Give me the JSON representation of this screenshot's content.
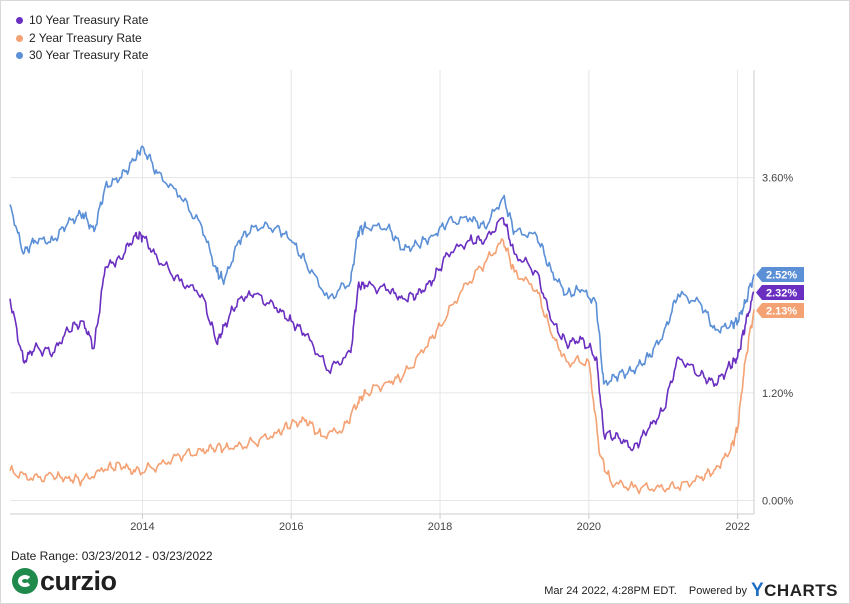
{
  "legend": {
    "items": [
      {
        "label": "10 Year Treasury Rate",
        "color": "#6a2fc0"
      },
      {
        "label": "2 Year Treasury Rate",
        "color": "#f4a173"
      },
      {
        "label": "30 Year Treasury Rate",
        "color": "#5b8fd6"
      }
    ]
  },
  "footer": {
    "date_range": "Date Range: 03/23/2012 - 03/23/2022",
    "logo_text": "curzio",
    "timestamp": "Mar 24 2022, 4:28PM EDT.",
    "powered_by": "Powered by",
    "brand_y": "Y",
    "brand_rest": "CHARTS"
  },
  "chart_data": {
    "type": "line",
    "x_range": [
      2012.22,
      2022.22
    ],
    "y_range": [
      -0.15,
      4.8
    ],
    "x_ticks": [
      {
        "value": 2014,
        "label": "2014"
      },
      {
        "value": 2016,
        "label": "2016"
      },
      {
        "value": 2018,
        "label": "2018"
      },
      {
        "value": 2020,
        "label": "2020"
      },
      {
        "value": 2022,
        "label": "2022"
      }
    ],
    "y_ticks": [
      {
        "value": 0.0,
        "label": "0.00%"
      },
      {
        "value": 1.2,
        "label": "1.20%"
      },
      {
        "value": 3.6,
        "label": "3.60%"
      }
    ],
    "grid": true,
    "end_labels": [
      {
        "series": "30 Year Treasury Rate",
        "label": "2.52%",
        "value": 2.52,
        "color": "#5b8fd6"
      },
      {
        "series": "10 Year Treasury Rate",
        "label": "2.32%",
        "value": 2.32,
        "color": "#6a2fc0"
      },
      {
        "series": "2 Year Treasury Rate",
        "label": "2.13%",
        "value": 2.13,
        "color": "#f4a173"
      }
    ],
    "series": [
      {
        "name": "30 Year Treasury Rate",
        "color": "#5b8fd6",
        "x": [
          2012.22,
          2012.4,
          2012.55,
          2012.8,
          2013.0,
          2013.2,
          2013.35,
          2013.5,
          2013.7,
          2013.9,
          2014.0,
          2014.2,
          2014.5,
          2014.8,
          2015.0,
          2015.1,
          2015.3,
          2015.5,
          2015.8,
          2016.0,
          2016.2,
          2016.5,
          2016.8,
          2016.9,
          2017.0,
          2017.3,
          2017.5,
          2017.7,
          2017.9,
          2018.1,
          2018.4,
          2018.6,
          2018.85,
          2019.0,
          2019.3,
          2019.5,
          2019.7,
          2019.9,
          2020.1,
          2020.2,
          2020.4,
          2020.6,
          2020.8,
          2021.0,
          2021.2,
          2021.5,
          2021.7,
          2021.9,
          2022.0,
          2022.1,
          2022.22
        ],
        "y": [
          3.3,
          2.75,
          2.9,
          2.9,
          3.1,
          3.2,
          3.0,
          3.5,
          3.6,
          3.8,
          3.95,
          3.65,
          3.4,
          3.05,
          2.55,
          2.45,
          2.9,
          3.05,
          3.05,
          2.9,
          2.65,
          2.25,
          2.45,
          3.0,
          3.05,
          3.05,
          2.8,
          2.85,
          2.95,
          3.1,
          3.15,
          3.05,
          3.38,
          3.0,
          2.95,
          2.55,
          2.3,
          2.35,
          2.2,
          1.3,
          1.4,
          1.45,
          1.6,
          1.85,
          2.3,
          2.2,
          1.9,
          1.95,
          2.0,
          2.2,
          2.52
        ]
      },
      {
        "name": "10 Year Treasury Rate",
        "color": "#6a2fc0",
        "x": [
          2012.22,
          2012.4,
          2012.55,
          2012.8,
          2013.0,
          2013.2,
          2013.35,
          2013.5,
          2013.7,
          2013.9,
          2014.0,
          2014.2,
          2014.5,
          2014.8,
          2015.0,
          2015.1,
          2015.3,
          2015.5,
          2015.8,
          2016.0,
          2016.2,
          2016.5,
          2016.8,
          2016.9,
          2017.0,
          2017.3,
          2017.5,
          2017.7,
          2017.9,
          2018.1,
          2018.4,
          2018.6,
          2018.85,
          2019.0,
          2019.3,
          2019.5,
          2019.7,
          2019.9,
          2020.1,
          2020.2,
          2020.4,
          2020.6,
          2020.8,
          2021.0,
          2021.2,
          2021.5,
          2021.7,
          2021.9,
          2022.0,
          2022.1,
          2022.22
        ],
        "y": [
          2.25,
          1.55,
          1.7,
          1.65,
          1.9,
          2.0,
          1.7,
          2.6,
          2.7,
          2.95,
          2.95,
          2.7,
          2.45,
          2.3,
          1.75,
          1.95,
          2.25,
          2.3,
          2.15,
          2.0,
          1.85,
          1.45,
          1.65,
          2.4,
          2.4,
          2.35,
          2.25,
          2.3,
          2.45,
          2.75,
          2.9,
          2.9,
          3.15,
          2.75,
          2.55,
          2.0,
          1.75,
          1.8,
          1.6,
          0.75,
          0.7,
          0.58,
          0.8,
          1.0,
          1.6,
          1.4,
          1.3,
          1.5,
          1.6,
          1.95,
          2.32
        ]
      },
      {
        "name": "2 Year Treasury Rate",
        "color": "#f4a173",
        "x": [
          2012.22,
          2012.5,
          2012.8,
          2013.0,
          2013.2,
          2013.5,
          2013.7,
          2013.9,
          2014.2,
          2014.5,
          2014.8,
          2015.0,
          2015.2,
          2015.5,
          2015.8,
          2016.0,
          2016.2,
          2016.4,
          2016.7,
          2016.9,
          2017.0,
          2017.3,
          2017.5,
          2017.8,
          2018.0,
          2018.3,
          2018.6,
          2018.85,
          2019.0,
          2019.3,
          2019.5,
          2019.7,
          2020.0,
          2020.15,
          2020.3,
          2020.6,
          2020.9,
          2021.2,
          2021.5,
          2021.7,
          2021.9,
          2022.0,
          2022.1,
          2022.22
        ],
        "y": [
          0.33,
          0.25,
          0.27,
          0.25,
          0.23,
          0.35,
          0.4,
          0.32,
          0.38,
          0.5,
          0.55,
          0.6,
          0.58,
          0.65,
          0.75,
          0.85,
          0.9,
          0.72,
          0.8,
          1.1,
          1.2,
          1.32,
          1.38,
          1.7,
          1.95,
          2.35,
          2.65,
          2.9,
          2.55,
          2.35,
          1.85,
          1.55,
          1.55,
          0.5,
          0.2,
          0.15,
          0.14,
          0.15,
          0.25,
          0.35,
          0.55,
          0.8,
          1.55,
          2.13
        ]
      }
    ]
  }
}
